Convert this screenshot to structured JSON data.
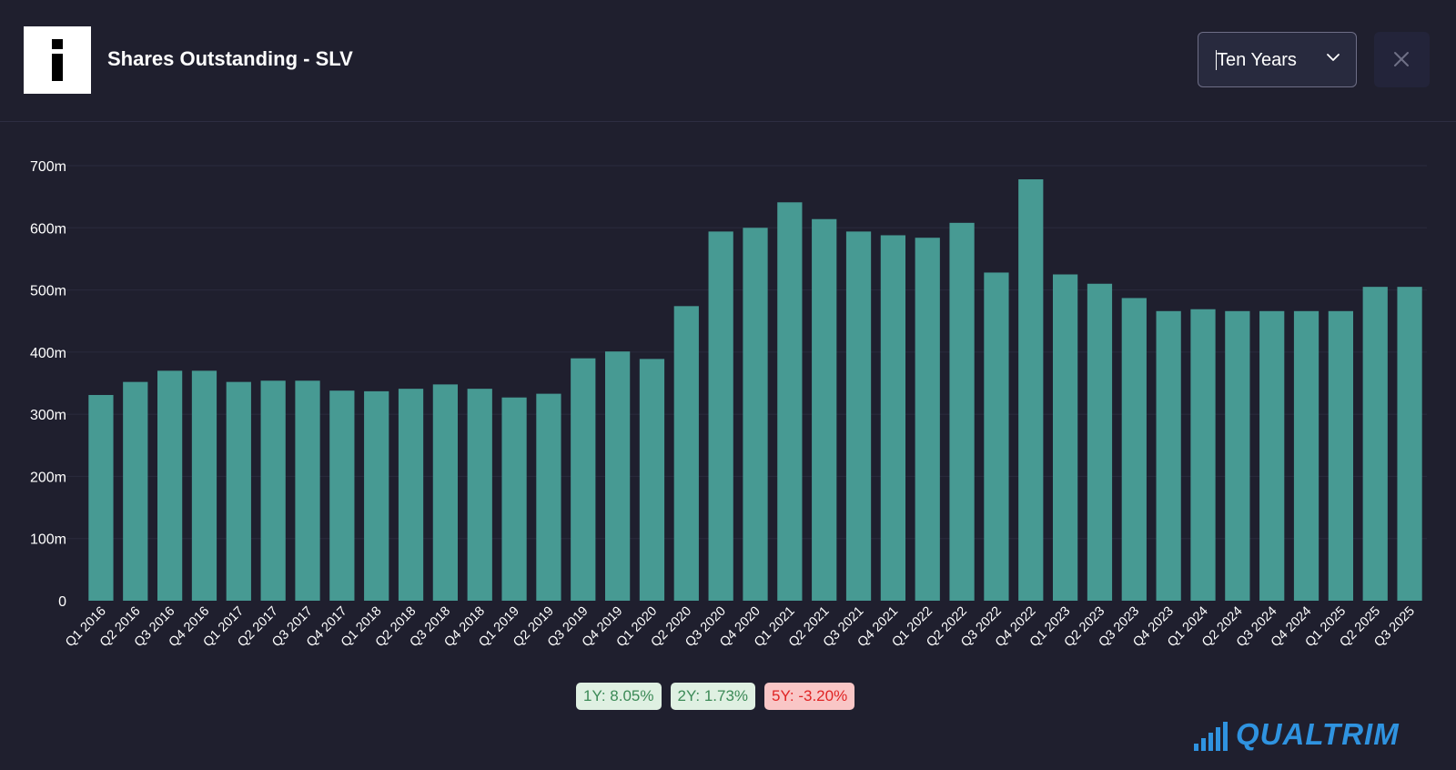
{
  "header": {
    "logo_glyph": "i",
    "title": "Shares Outstanding - SLV"
  },
  "period_select": {
    "value": "Ten Years",
    "icon": "chevron-down-icon"
  },
  "close_button": {
    "icon": "close-icon"
  },
  "colors": {
    "background": "#1f1f2e",
    "bar": "#479a93",
    "badge_positive_bg": "#dff0e2",
    "badge_positive_text": "#3c8a57",
    "badge_negative_bg": "#f9c6c6",
    "badge_negative_text": "#e02424",
    "brand": "#2f93e0"
  },
  "chart_data": {
    "type": "bar",
    "title": "Shares Outstanding - SLV",
    "xlabel": "",
    "ylabel": "",
    "ylim": [
      0,
      700000000
    ],
    "y_ticks": [
      {
        "value": 0,
        "label": "0"
      },
      {
        "value": 100000000,
        "label": "100m"
      },
      {
        "value": 200000000,
        "label": "200m"
      },
      {
        "value": 300000000,
        "label": "300m"
      },
      {
        "value": 400000000,
        "label": "400m"
      },
      {
        "value": 500000000,
        "label": "500m"
      },
      {
        "value": 600000000,
        "label": "600m"
      },
      {
        "value": 700000000,
        "label": "700m"
      }
    ],
    "grid": true,
    "legend": "none",
    "categories": [
      "Q1 2016",
      "Q2 2016",
      "Q3 2016",
      "Q4 2016",
      "Q1 2017",
      "Q2 2017",
      "Q3 2017",
      "Q4 2017",
      "Q1 2018",
      "Q2 2018",
      "Q3 2018",
      "Q4 2018",
      "Q1 2019",
      "Q2 2019",
      "Q3 2019",
      "Q4 2019",
      "Q1 2020",
      "Q2 2020",
      "Q3 2020",
      "Q4 2020",
      "Q1 2021",
      "Q2 2021",
      "Q3 2021",
      "Q4 2021",
      "Q1 2022",
      "Q2 2022",
      "Q3 2022",
      "Q4 2022",
      "Q1 2023",
      "Q2 2023",
      "Q3 2023",
      "Q4 2023",
      "Q1 2024",
      "Q2 2024",
      "Q3 2024",
      "Q4 2024",
      "Q1 2025",
      "Q2 2025",
      "Q3 2025"
    ],
    "values": [
      331000000,
      352000000,
      370000000,
      370000000,
      352000000,
      354000000,
      354000000,
      338000000,
      337000000,
      341000000,
      348000000,
      341000000,
      327000000,
      333000000,
      390000000,
      401000000,
      389000000,
      474000000,
      594000000,
      600000000,
      641000000,
      614000000,
      594000000,
      588000000,
      584000000,
      608000000,
      528000000,
      678000000,
      525000000,
      510000000,
      487000000,
      466000000,
      469000000,
      466000000,
      466000000,
      466000000,
      466000000,
      505000000,
      505000000
    ]
  },
  "growth_badges": [
    {
      "label": "1Y: 8.05%",
      "trend": "positive"
    },
    {
      "label": "2Y: 1.73%",
      "trend": "positive"
    },
    {
      "label": "5Y: -3.20%",
      "trend": "negative"
    }
  ],
  "brand": {
    "name": "QUALTRIM",
    "icon": "signal-bars-icon"
  }
}
